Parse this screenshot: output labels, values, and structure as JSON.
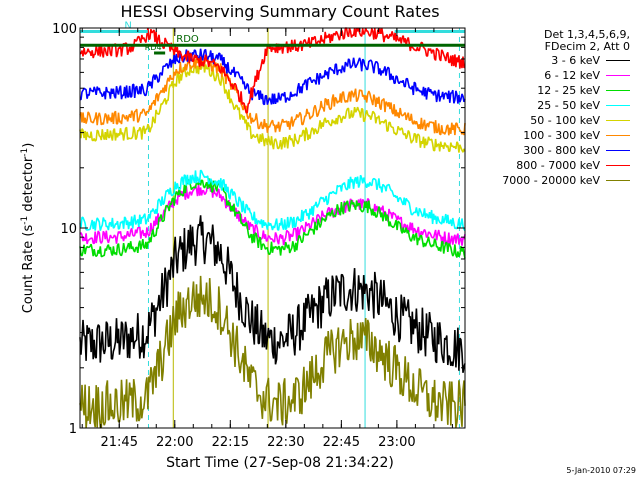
{
  "title": "HESSI Observing Summary Count Rates",
  "footer_date": "5-Jan-2010 07:29",
  "legend": {
    "line1": "Det 1,3,4,5,6,9,",
    "line2": "FDecim 2, Att 0"
  },
  "chart_data": {
    "type": "line",
    "title": "HESSI Observing Summary Count Rates",
    "xlabel": "Start Time (27-Sep-08 21:34:22)",
    "ylabel_main": "Count Rate (s",
    "ylabel_sup": "-1",
    "ylabel_tail": " detector",
    "ylabel_sup2": "-1",
    "ylabel_end": ")",
    "x_units": "minutes after 21:34:22",
    "xlim": [
      0,
      104
    ],
    "x_ticks": [
      {
        "label": "21:45",
        "x": 10.6
      },
      {
        "label": "22:00",
        "x": 25.6
      },
      {
        "label": "22:15",
        "x": 40.6
      },
      {
        "label": "22:30",
        "x": 55.6
      },
      {
        "label": "22:45",
        "x": 70.6
      },
      {
        "label": "23:00",
        "x": 85.6
      }
    ],
    "y_scale": "log",
    "ylim": [
      1,
      100
    ],
    "y_ticks": [
      {
        "label": "1",
        "y": 1
      },
      {
        "label": "10",
        "y": 10
      },
      {
        "label": "100",
        "y": 100
      }
    ],
    "vlines": [
      {
        "x": 0.0,
        "style": "solid",
        "color": "#33dddd"
      },
      {
        "x": 18.5,
        "style": "dashed",
        "color": "#33dddd"
      },
      {
        "x": 77.0,
        "style": "solid",
        "color": "#33dddd"
      },
      {
        "x": 102.5,
        "style": "dashed",
        "color": "#33dddd"
      },
      {
        "x": 25.2,
        "style": "solid",
        "color": "#b8b800"
      },
      {
        "x": 50.8,
        "style": "solid",
        "color": "#b8b800"
      }
    ],
    "flags": [
      {
        "label": "N",
        "color": "#33dddd",
        "segments": [
          [
            0,
            18.3
          ],
          [
            85,
            104
          ]
        ],
        "y": 96
      },
      {
        "label": "RDO",
        "color": "#006400",
        "segments": [
          [
            0,
            104
          ]
        ],
        "y": 82
      },
      {
        "label": "RD4",
        "color": "#006400",
        "segments": [
          [
            20,
            23
          ]
        ],
        "y": 75
      }
    ],
    "series": [
      {
        "name": "3 - 6 keV",
        "color": "#000000",
        "x": [
          0,
          10,
          18,
          22,
          26,
          30,
          34,
          38,
          42,
          46,
          50,
          54,
          58,
          62,
          66,
          70,
          74,
          78,
          82,
          86,
          90,
          94,
          98,
          102
        ],
        "y": [
          2.6,
          2.7,
          3.0,
          4.5,
          7.0,
          8.5,
          8.8,
          7.5,
          5.0,
          3.5,
          2.8,
          2.7,
          3.0,
          3.6,
          4.3,
          4.8,
          5.0,
          4.8,
          4.2,
          3.6,
          3.2,
          2.9,
          2.7,
          2.5
        ]
      },
      {
        "name": "6 - 12 keV",
        "color": "#ff00ff",
        "x": [
          0,
          10,
          18,
          22,
          26,
          30,
          34,
          38,
          42,
          46,
          50,
          54,
          58,
          62,
          66,
          70,
          74,
          78,
          82,
          86,
          90,
          94,
          98,
          102
        ],
        "y": [
          9.0,
          9.0,
          9.5,
          11.5,
          14.0,
          15.5,
          15.8,
          14.5,
          12.0,
          10.0,
          9.0,
          8.8,
          9.2,
          10.2,
          11.5,
          12.5,
          13.2,
          13.0,
          12.0,
          10.8,
          10.0,
          9.4,
          9.0,
          8.8
        ]
      },
      {
        "name": "12 - 25 keV",
        "color": "#00dd00",
        "x": [
          0,
          10,
          18,
          22,
          26,
          30,
          34,
          38,
          42,
          46,
          50,
          54,
          58,
          62,
          66,
          70,
          74,
          78,
          82,
          86,
          90,
          94,
          98,
          102
        ],
        "y": [
          7.8,
          7.8,
          8.2,
          11.0,
          14.5,
          16.8,
          17.0,
          15.5,
          12.0,
          9.2,
          8.0,
          7.8,
          8.2,
          9.5,
          11.0,
          12.5,
          13.0,
          12.8,
          11.5,
          10.0,
          9.0,
          8.4,
          8.0,
          7.6
        ]
      },
      {
        "name": "25 - 50 keV",
        "color": "#00ffff",
        "x": [
          0,
          10,
          18,
          22,
          26,
          30,
          34,
          38,
          42,
          46,
          50,
          54,
          58,
          62,
          66,
          70,
          74,
          78,
          82,
          86,
          90,
          94,
          98,
          102
        ],
        "y": [
          10.5,
          10.5,
          11.0,
          13.5,
          16.5,
          18.0,
          18.2,
          16.8,
          14.0,
          11.5,
          10.5,
          10.3,
          10.8,
          12.0,
          13.8,
          15.5,
          17.0,
          17.2,
          16.0,
          14.0,
          12.5,
          11.5,
          11.0,
          10.5
        ]
      },
      {
        "name": "50 - 100 keV",
        "color": "#d4d400",
        "x": [
          0,
          10,
          18,
          22,
          26,
          30,
          34,
          38,
          42,
          46,
          50,
          54,
          58,
          62,
          66,
          70,
          74,
          78,
          82,
          86,
          90,
          94,
          98,
          102
        ],
        "y": [
          29.0,
          29.5,
          30.0,
          40.0,
          55.0,
          63.0,
          63.5,
          56.0,
          40.0,
          30.0,
          27.0,
          26.5,
          27.5,
          30.0,
          33.5,
          36.0,
          37.5,
          36.5,
          33.5,
          30.5,
          28.0,
          26.5,
          26.0,
          25.5
        ]
      },
      {
        "name": "100 - 300 keV",
        "color": "#ff8800",
        "x": [
          0,
          10,
          18,
          22,
          26,
          30,
          34,
          38,
          42,
          46,
          50,
          54,
          58,
          62,
          66,
          70,
          74,
          78,
          82,
          86,
          90,
          94,
          98,
          102
        ],
        "y": [
          35.0,
          35.5,
          37.0,
          48.0,
          62.0,
          67.0,
          67.5,
          62.0,
          48.0,
          36.0,
          32.5,
          32.0,
          34.0,
          37.0,
          41.0,
          44.5,
          46.0,
          45.0,
          41.5,
          37.5,
          34.5,
          32.5,
          31.5,
          31.0
        ]
      },
      {
        "name": "300 - 800 keV",
        "color": "#0000ff",
        "x": [
          0,
          10,
          18,
          22,
          26,
          30,
          34,
          38,
          42,
          46,
          50,
          54,
          58,
          62,
          66,
          70,
          74,
          78,
          82,
          86,
          90,
          94,
          98,
          102
        ],
        "y": [
          47.0,
          47.5,
          49.0,
          60.0,
          70.0,
          73.0,
          73.0,
          69.0,
          58.0,
          47.5,
          44.0,
          44.0,
          48.0,
          53.0,
          58.0,
          63.0,
          66.0,
          65.0,
          61.0,
          55.0,
          50.0,
          47.0,
          45.5,
          45.0
        ]
      },
      {
        "name": "800 - 7000 keV",
        "color": "#ff0000",
        "x": [
          0,
          4,
          8,
          12,
          15,
          17,
          18.5,
          22,
          26,
          30,
          34,
          38,
          42,
          45,
          50.5,
          54,
          58,
          62,
          66,
          70,
          74,
          78,
          82,
          86,
          90,
          94,
          98,
          102
        ],
        "y": [
          76.0,
          76.5,
          77.0,
          78.0,
          82.0,
          88.0,
          95.0,
          85.0,
          75.0,
          70.0,
          68.0,
          63.0,
          50.0,
          40.0,
          80.0,
          80.5,
          81.0,
          83.0,
          88.0,
          93.0,
          97.0,
          96.0,
          92.0,
          87.0,
          82.0,
          77.0,
          72.0,
          68.0
        ]
      },
      {
        "name": "7000 - 20000 keV",
        "color": "#808000",
        "x": [
          0,
          10,
          18,
          22,
          26,
          30,
          34,
          38,
          42,
          46,
          50,
          54,
          58,
          62,
          66,
          70,
          74,
          78,
          82,
          86,
          90,
          94,
          98,
          102
        ],
        "y": [
          1.3,
          1.3,
          1.4,
          2.2,
          3.6,
          4.4,
          4.5,
          3.9,
          2.6,
          1.7,
          1.4,
          1.3,
          1.4,
          1.7,
          2.2,
          2.6,
          2.8,
          2.7,
          2.3,
          1.9,
          1.6,
          1.4,
          1.3,
          1.3
        ]
      }
    ]
  }
}
